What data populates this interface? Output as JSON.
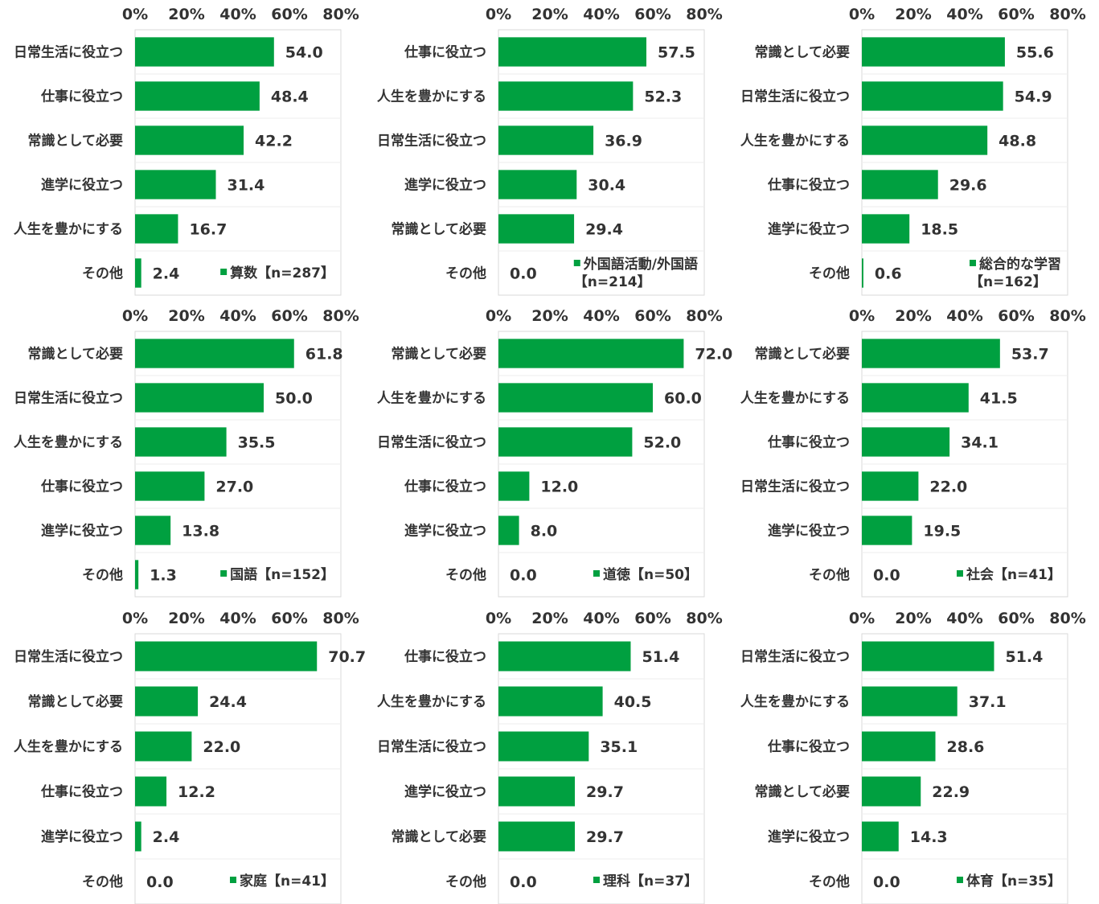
{
  "colors": {
    "bar": "#00a040",
    "axis": "#d9d9d9",
    "text": "#333333"
  },
  "chart_data": [
    {
      "type": "bar",
      "orientation": "horizontal",
      "legend": "算数【n=287】",
      "xlim": [
        0,
        80
      ],
      "ticks": [
        "0%",
        "20%",
        "40%",
        "60%",
        "80%"
      ],
      "categories": [
        "日常生活に役立つ",
        "仕事に役立つ",
        "常識として必要",
        "進学に役立つ",
        "人生を豊かにする",
        "その他"
      ],
      "values": [
        54.0,
        48.4,
        42.2,
        31.4,
        16.7,
        2.4
      ],
      "labels": [
        "54.0",
        "48.4",
        "42.2",
        "31.4",
        "16.7",
        "2.4"
      ]
    },
    {
      "type": "bar",
      "orientation": "horizontal",
      "legend": "外国語活動/外国語【n=214】",
      "xlim": [
        0,
        80
      ],
      "ticks": [
        "0%",
        "20%",
        "40%",
        "60%",
        "80%"
      ],
      "categories": [
        "仕事に役立つ",
        "人生を豊かにする",
        "日常生活に役立つ",
        "進学に役立つ",
        "常識として必要",
        "その他"
      ],
      "values": [
        57.5,
        52.3,
        36.9,
        30.4,
        29.4,
        0.0
      ],
      "labels": [
        "57.5",
        "52.3",
        "36.9",
        "30.4",
        "29.4",
        "0.0"
      ]
    },
    {
      "type": "bar",
      "orientation": "horizontal",
      "legend": "総合的な学習【n=162】",
      "xlim": [
        0,
        80
      ],
      "ticks": [
        "0%",
        "20%",
        "40%",
        "60%",
        "80%"
      ],
      "categories": [
        "常識として必要",
        "日常生活に役立つ",
        "人生を豊かにする",
        "仕事に役立つ",
        "進学に役立つ",
        "その他"
      ],
      "values": [
        55.6,
        54.9,
        48.8,
        29.6,
        18.5,
        0.6
      ],
      "labels": [
        "55.6",
        "54.9",
        "48.8",
        "29.6",
        "18.5",
        "0.6"
      ]
    },
    {
      "type": "bar",
      "orientation": "horizontal",
      "legend": "国語【n=152】",
      "xlim": [
        0,
        80
      ],
      "ticks": [
        "0%",
        "20%",
        "40%",
        "60%",
        "80%"
      ],
      "categories": [
        "常識として必要",
        "日常生活に役立つ",
        "人生を豊かにする",
        "仕事に役立つ",
        "進学に役立つ",
        "その他"
      ],
      "values": [
        61.8,
        50.0,
        35.5,
        27.0,
        13.8,
        1.3
      ],
      "labels": [
        "61.8",
        "50.0",
        "35.5",
        "27.0",
        "13.8",
        "1.3"
      ]
    },
    {
      "type": "bar",
      "orientation": "horizontal",
      "legend": "道徳【n=50】",
      "xlim": [
        0,
        80
      ],
      "ticks": [
        "0%",
        "20%",
        "40%",
        "60%",
        "80%"
      ],
      "categories": [
        "常識として必要",
        "人生を豊かにする",
        "日常生活に役立つ",
        "仕事に役立つ",
        "進学に役立つ",
        "その他"
      ],
      "values": [
        72.0,
        60.0,
        52.0,
        12.0,
        8.0,
        0.0
      ],
      "labels": [
        "72.0",
        "60.0",
        "52.0",
        "12.0",
        "8.0",
        "0.0"
      ]
    },
    {
      "type": "bar",
      "orientation": "horizontal",
      "legend": "社会【n=41】",
      "xlim": [
        0,
        80
      ],
      "ticks": [
        "0%",
        "20%",
        "40%",
        "60%",
        "80%"
      ],
      "categories": [
        "常識として必要",
        "人生を豊かにする",
        "仕事に役立つ",
        "日常生活に役立つ",
        "進学に役立つ",
        "その他"
      ],
      "values": [
        53.7,
        41.5,
        34.1,
        22.0,
        19.5,
        0.0
      ],
      "labels": [
        "53.7",
        "41.5",
        "34.1",
        "22.0",
        "19.5",
        "0.0"
      ]
    },
    {
      "type": "bar",
      "orientation": "horizontal",
      "legend": "家庭【n=41】",
      "xlim": [
        0,
        80
      ],
      "ticks": [
        "0%",
        "20%",
        "40%",
        "60%",
        "80%"
      ],
      "categories": [
        "日常生活に役立つ",
        "常識として必要",
        "人生を豊かにする",
        "仕事に役立つ",
        "進学に役立つ",
        "その他"
      ],
      "values": [
        70.7,
        24.4,
        22.0,
        12.2,
        2.4,
        0.0
      ],
      "labels": [
        "70.7",
        "24.4",
        "22.0",
        "12.2",
        "2.4",
        "0.0"
      ]
    },
    {
      "type": "bar",
      "orientation": "horizontal",
      "legend": "理科【n=37】",
      "xlim": [
        0,
        80
      ],
      "ticks": [
        "0%",
        "20%",
        "40%",
        "60%",
        "80%"
      ],
      "categories": [
        "仕事に役立つ",
        "人生を豊かにする",
        "日常生活に役立つ",
        "進学に役立つ",
        "常識として必要",
        "その他"
      ],
      "values": [
        51.4,
        40.5,
        35.1,
        29.7,
        29.7,
        0.0
      ],
      "labels": [
        "51.4",
        "40.5",
        "35.1",
        "29.7",
        "29.7",
        "0.0"
      ]
    },
    {
      "type": "bar",
      "orientation": "horizontal",
      "legend": "体育【n=35】",
      "xlim": [
        0,
        80
      ],
      "ticks": [
        "0%",
        "20%",
        "40%",
        "60%",
        "80%"
      ],
      "categories": [
        "日常生活に役立つ",
        "人生を豊かにする",
        "仕事に役立つ",
        "常識として必要",
        "進学に役立つ",
        "その他"
      ],
      "values": [
        51.4,
        37.1,
        28.6,
        22.9,
        14.3,
        0.0
      ],
      "labels": [
        "51.4",
        "37.1",
        "28.6",
        "22.9",
        "14.3",
        "0.0"
      ]
    }
  ]
}
